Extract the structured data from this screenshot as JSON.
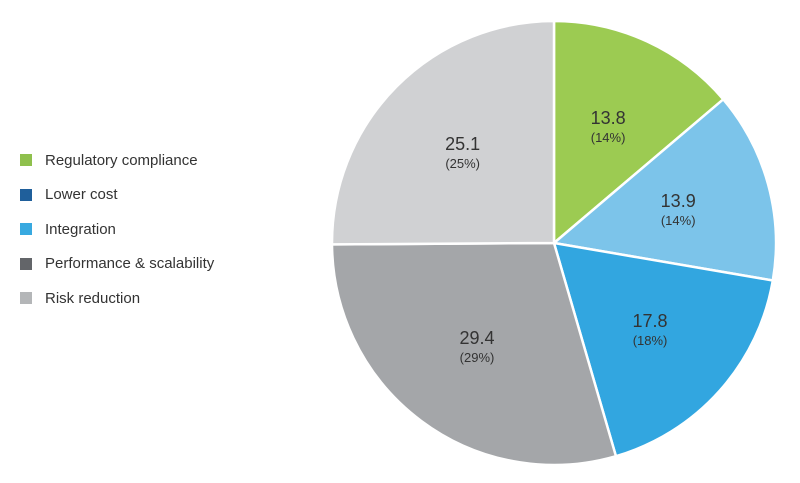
{
  "chart_data": {
    "type": "pie",
    "title": "",
    "legend_position": "left",
    "slices": [
      {
        "label": "Regulatory compliance",
        "value": 13.8,
        "percent_label": "(14%)",
        "color": "#9ccb52"
      },
      {
        "label": "Integration",
        "value": 13.9,
        "percent_label": "(14%)",
        "color": "#7cc4ea",
        "legend_color": "#38a9e0"
      },
      {
        "label": "Lower cost",
        "value": 17.8,
        "percent_label": "(18%)",
        "color": "#32a6e0",
        "legend_color": "#1f5f9b"
      },
      {
        "label": "Performance & scalability",
        "value": 29.4,
        "percent_label": "(29%)",
        "color": "#a4a6a9",
        "legend_color": "#636569"
      },
      {
        "label": "Risk reduction",
        "value": 25.1,
        "percent_label": "(25%)",
        "color": "#d0d1d3",
        "legend_color": "#b4b6b8"
      }
    ],
    "legend": [
      {
        "label": "Regulatory compliance",
        "color": "#8fc04d"
      },
      {
        "label": "Lower cost",
        "color": "#1f5f9b"
      },
      {
        "label": "Integration",
        "color": "#38a9e0"
      },
      {
        "label": "Performance & scalability",
        "color": "#636569"
      },
      {
        "label": "Risk reduction",
        "color": "#b4b6b8"
      }
    ]
  }
}
